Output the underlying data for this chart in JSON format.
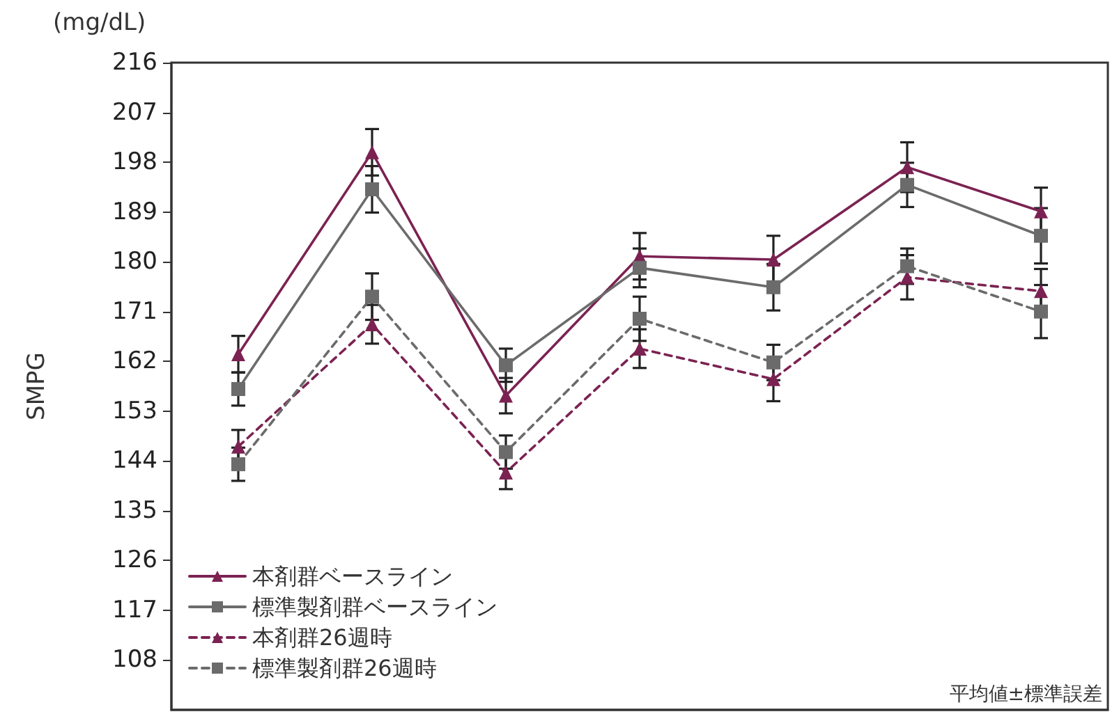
{
  "chart_data": {
    "type": "line",
    "ylabel": "SMPG",
    "annotations": [
      "(mg/dL)",
      "平均値±標準誤差"
    ],
    "categories": [
      null,
      null,
      null,
      null,
      null,
      null,
      null
    ],
    "series": [
      {
        "name": "本剤群ベースライン",
        "color": "#7b2252",
        "marker": "triangle",
        "line_style": "solid",
        "values": [
          163.3,
          199.8,
          155.8,
          181,
          180.4,
          197.1,
          189.1
        ],
        "errors": [
          3.3,
          4.2,
          3.2,
          4.2,
          4.3,
          4.5,
          4.3
        ]
      },
      {
        "name": "標準製剤群ベースライン",
        "color": "#6b6b6b",
        "marker": "square",
        "line_style": "solid",
        "values": [
          157,
          193.1,
          161.3,
          178.9,
          175.4,
          193.9,
          184.7
        ],
        "errors": [
          3,
          4.2,
          3,
          3.5,
          4.2,
          4,
          5
        ]
      },
      {
        "name": "本剤群26週時",
        "color": "#7b2252",
        "marker": "triangle",
        "line_style": "dashed",
        "values": [
          146.6,
          168.7,
          141.9,
          164.3,
          158.8,
          177.2,
          174.7
        ],
        "errors": [
          3,
          3.5,
          3,
          3.5,
          4,
          4,
          4
        ]
      },
      {
        "name": "標準製剤群26週時",
        "color": "#6b6b6b",
        "marker": "square",
        "line_style": "dashed",
        "values": [
          143.4,
          173.7,
          145.6,
          169.7,
          161.8,
          179.2,
          171
        ],
        "errors": [
          3,
          4.2,
          3,
          4,
          3.2,
          3.2,
          4.8
        ]
      }
    ],
    "ylim": [
      99,
      216
    ],
    "yticks": [
      108,
      117,
      126,
      135,
      144,
      153,
      162,
      171,
      180,
      189,
      198,
      207,
      216
    ],
    "grid": false,
    "legend": "bottom left"
  }
}
